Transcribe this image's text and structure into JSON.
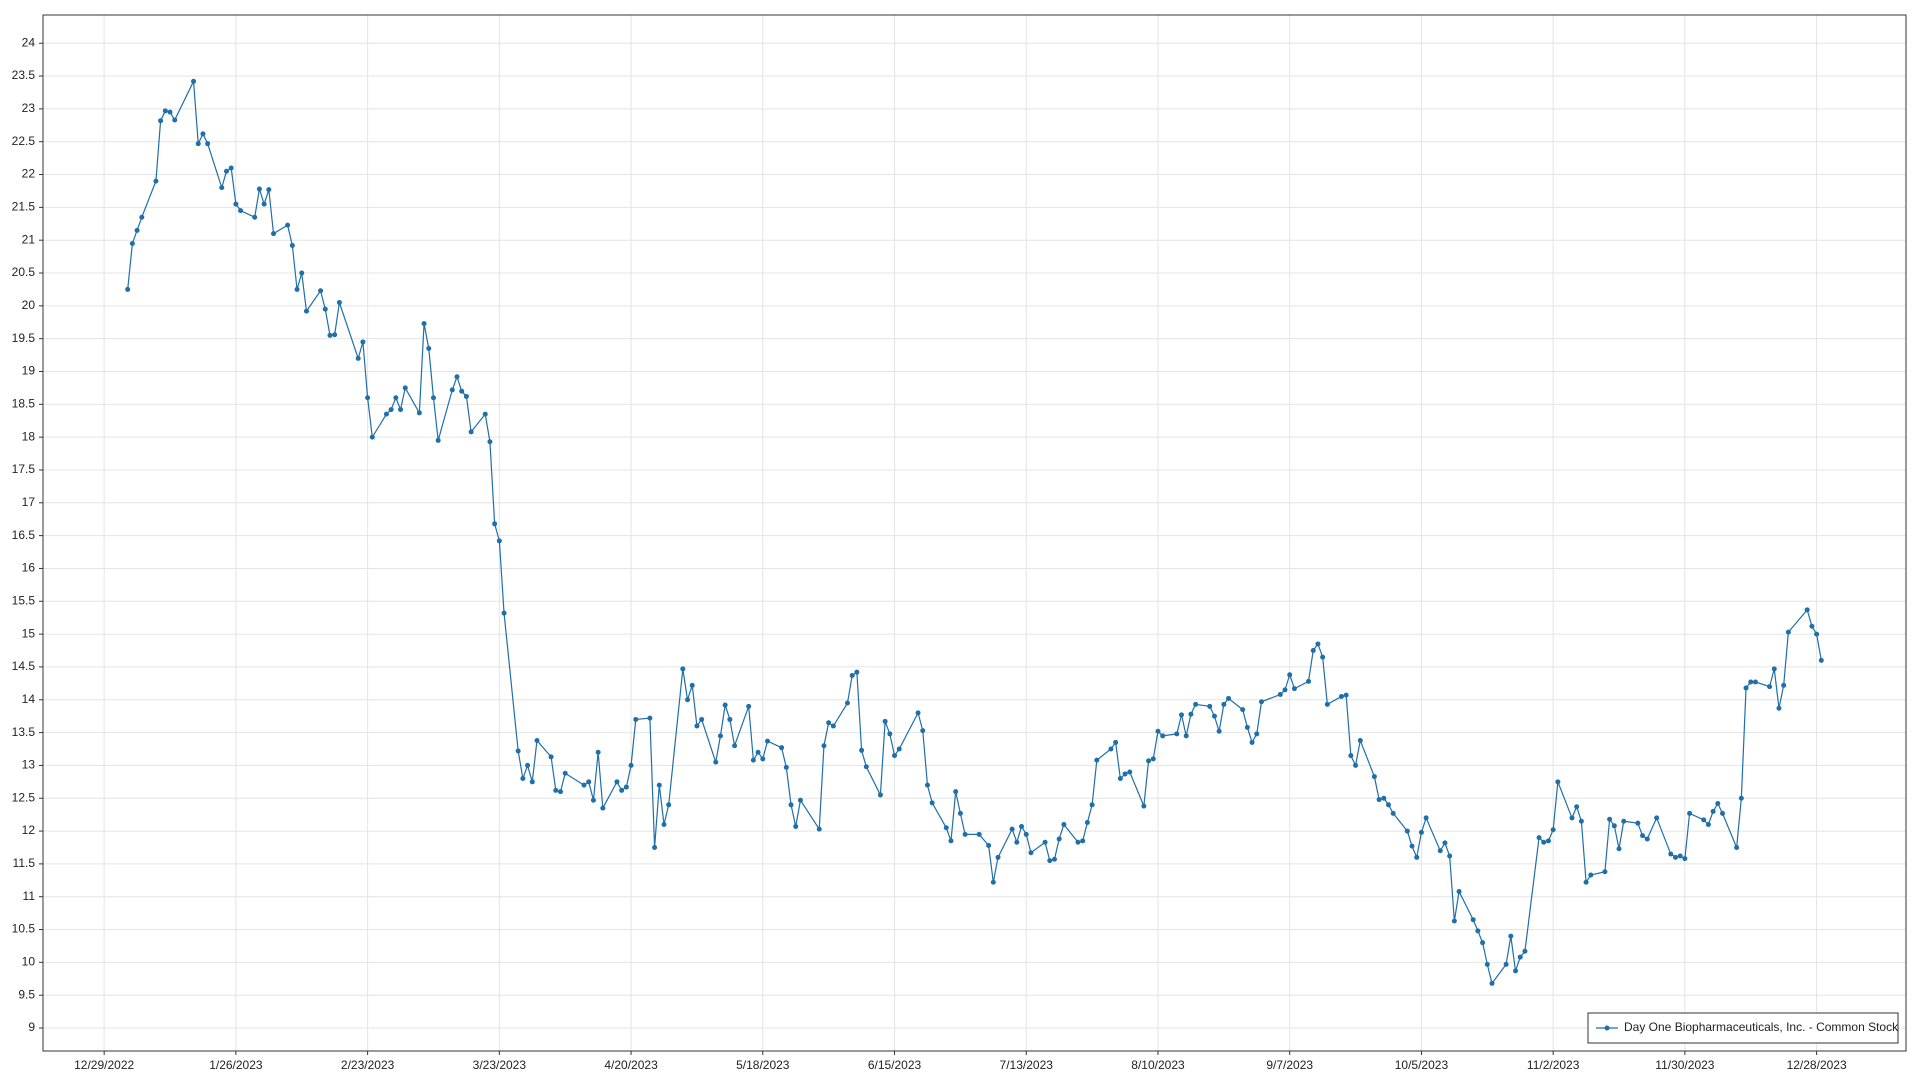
{
  "chart_data": {
    "type": "line",
    "x": [
      "1/3/2023",
      "1/4/2023",
      "1/5/2023",
      "1/6/2023",
      "1/9/2023",
      "1/10/2023",
      "1/11/2023",
      "1/12/2023",
      "1/13/2023",
      "1/17/2023",
      "1/18/2023",
      "1/19/2023",
      "1/20/2023",
      "1/23/2023",
      "1/24/2023",
      "1/25/2023",
      "1/26/2023",
      "1/27/2023",
      "1/30/2023",
      "1/31/2023",
      "2/1/2023",
      "2/2/2023",
      "2/3/2023",
      "2/6/2023",
      "2/7/2023",
      "2/8/2023",
      "2/9/2023",
      "2/10/2023",
      "2/13/2023",
      "2/14/2023",
      "2/15/2023",
      "2/16/2023",
      "2/17/2023",
      "2/21/2023",
      "2/22/2023",
      "2/23/2023",
      "2/24/2023",
      "2/27/2023",
      "2/28/2023",
      "3/1/2023",
      "3/2/2023",
      "3/3/2023",
      "3/6/2023",
      "3/7/2023",
      "3/8/2023",
      "3/9/2023",
      "3/10/2023",
      "3/13/2023",
      "3/14/2023",
      "3/15/2023",
      "3/16/2023",
      "3/17/2023",
      "3/20/2023",
      "3/21/2023",
      "3/22/2023",
      "3/23/2023",
      "3/24/2023",
      "3/27/2023",
      "3/28/2023",
      "3/29/2023",
      "3/30/2023",
      "3/31/2023",
      "4/3/2023",
      "4/4/2023",
      "4/5/2023",
      "4/6/2023",
      "4/10/2023",
      "4/11/2023",
      "4/12/2023",
      "4/13/2023",
      "4/14/2023",
      "4/17/2023",
      "4/18/2023",
      "4/19/2023",
      "4/20/2023",
      "4/21/2023",
      "4/24/2023",
      "4/25/2023",
      "4/26/2023",
      "4/27/2023",
      "4/28/2023",
      "5/1/2023",
      "5/2/2023",
      "5/3/2023",
      "5/4/2023",
      "5/5/2023",
      "5/8/2023",
      "5/9/2023",
      "5/10/2023",
      "5/11/2023",
      "5/12/2023",
      "5/15/2023",
      "5/16/2023",
      "5/17/2023",
      "5/18/2023",
      "5/19/2023",
      "5/22/2023",
      "5/23/2023",
      "5/24/2023",
      "5/25/2023",
      "5/26/2023",
      "5/30/2023",
      "5/31/2023",
      "6/1/2023",
      "6/2/2023",
      "6/5/2023",
      "6/6/2023",
      "6/7/2023",
      "6/8/2023",
      "6/9/2023",
      "6/12/2023",
      "6/13/2023",
      "6/14/2023",
      "6/15/2023",
      "6/16/2023",
      "6/20/2023",
      "6/21/2023",
      "6/22/2023",
      "6/23/2023",
      "6/26/2023",
      "6/27/2023",
      "6/28/2023",
      "6/29/2023",
      "6/30/2023",
      "7/3/2023",
      "7/5/2023",
      "7/6/2023",
      "7/7/2023",
      "7/10/2023",
      "7/11/2023",
      "7/12/2023",
      "7/13/2023",
      "7/14/2023",
      "7/17/2023",
      "7/18/2023",
      "7/19/2023",
      "7/20/2023",
      "7/21/2023",
      "7/24/2023",
      "7/25/2023",
      "7/26/2023",
      "7/27/2023",
      "7/28/2023",
      "7/31/2023",
      "8/1/2023",
      "8/2/2023",
      "8/3/2023",
      "8/4/2023",
      "8/7/2023",
      "8/8/2023",
      "8/9/2023",
      "8/10/2023",
      "8/11/2023",
      "8/14/2023",
      "8/15/2023",
      "8/16/2023",
      "8/17/2023",
      "8/18/2023",
      "8/21/2023",
      "8/22/2023",
      "8/23/2023",
      "8/24/2023",
      "8/25/2023",
      "8/28/2023",
      "8/29/2023",
      "8/30/2023",
      "8/31/2023",
      "9/1/2023",
      "9/5/2023",
      "9/6/2023",
      "9/7/2023",
      "9/8/2023",
      "9/11/2023",
      "9/12/2023",
      "9/13/2023",
      "9/14/2023",
      "9/15/2023",
      "9/18/2023",
      "9/19/2023",
      "9/20/2023",
      "9/21/2023",
      "9/22/2023",
      "9/25/2023",
      "9/26/2023",
      "9/27/2023",
      "9/28/2023",
      "9/29/2023",
      "10/2/2023",
      "10/3/2023",
      "10/4/2023",
      "10/5/2023",
      "10/6/2023",
      "10/9/2023",
      "10/10/2023",
      "10/11/2023",
      "10/12/2023",
      "10/13/2023",
      "10/16/2023",
      "10/17/2023",
      "10/18/2023",
      "10/19/2023",
      "10/20/2023",
      "10/23/2023",
      "10/24/2023",
      "10/25/2023",
      "10/26/2023",
      "10/27/2023",
      "10/30/2023",
      "10/31/2023",
      "11/1/2023",
      "11/2/2023",
      "11/3/2023",
      "11/6/2023",
      "11/7/2023",
      "11/8/2023",
      "11/9/2023",
      "11/10/2023",
      "11/13/2023",
      "11/14/2023",
      "11/15/2023",
      "11/16/2023",
      "11/17/2023",
      "11/20/2023",
      "11/21/2023",
      "11/22/2023",
      "11/24/2023",
      "11/27/2023",
      "11/28/2023",
      "11/29/2023",
      "11/30/2023",
      "12/1/2023",
      "12/4/2023",
      "12/5/2023",
      "12/6/2023",
      "12/7/2023",
      "12/8/2023",
      "12/11/2023",
      "12/12/2023",
      "12/13/2023",
      "12/14/2023",
      "12/15/2023",
      "12/18/2023",
      "12/19/2023",
      "12/20/2023",
      "12/21/2023",
      "12/22/2023",
      "12/26/2023",
      "12/27/2023",
      "12/28/2023",
      "12/29/2023"
    ],
    "series": [
      {
        "name": "Day One Biopharmaceuticals, Inc. - Common Stock",
        "color": "#1f6fa8",
        "values": [
          20.25,
          20.95,
          21.15,
          21.35,
          21.9,
          22.82,
          22.97,
          22.95,
          22.83,
          23.42,
          22.47,
          22.62,
          22.47,
          21.8,
          22.05,
          22.1,
          21.55,
          21.45,
          21.35,
          21.78,
          21.55,
          21.77,
          21.1,
          21.23,
          20.92,
          20.25,
          20.5,
          19.92,
          20.23,
          19.95,
          19.55,
          19.56,
          20.05,
          19.2,
          19.45,
          18.6,
          18.0,
          18.35,
          18.42,
          18.6,
          18.42,
          18.75,
          18.37,
          19.73,
          19.35,
          18.6,
          17.95,
          18.72,
          18.92,
          18.7,
          18.62,
          18.08,
          18.35,
          17.93,
          16.68,
          16.42,
          15.32,
          13.22,
          12.8,
          13.0,
          12.75,
          13.38,
          13.13,
          12.62,
          12.6,
          12.88,
          12.7,
          12.75,
          12.47,
          13.2,
          12.35,
          12.75,
          12.62,
          12.67,
          13.0,
          13.7,
          13.72,
          11.75,
          12.7,
          12.1,
          12.4,
          14.47,
          14.0,
          14.22,
          13.6,
          13.7,
          13.05,
          13.45,
          13.92,
          13.7,
          13.3,
          13.9,
          13.08,
          13.2,
          13.1,
          13.37,
          13.27,
          12.97,
          12.4,
          12.07,
          12.47,
          12.03,
          13.3,
          13.65,
          13.6,
          13.95,
          14.37,
          14.42,
          13.23,
          12.98,
          12.55,
          13.67,
          13.48,
          13.15,
          13.25,
          13.8,
          13.53,
          12.7,
          12.43,
          12.05,
          11.85,
          12.6,
          12.27,
          11.95,
          11.95,
          11.78,
          11.22,
          11.6,
          12.03,
          11.83,
          12.07,
          11.95,
          11.67,
          11.83,
          11.55,
          11.57,
          11.88,
          12.1,
          11.83,
          11.85,
          12.13,
          12.4,
          13.08,
          13.25,
          13.35,
          12.8,
          12.87,
          12.9,
          12.38,
          13.07,
          13.1,
          13.52,
          13.45,
          13.48,
          13.77,
          13.45,
          13.78,
          13.93,
          13.9,
          13.75,
          13.52,
          13.93,
          14.02,
          13.85,
          13.58,
          13.35,
          13.48,
          13.97,
          14.08,
          14.15,
          14.38,
          14.17,
          14.28,
          14.75,
          14.85,
          14.65,
          13.93,
          14.05,
          14.07,
          13.15,
          13.0,
          13.38,
          12.83,
          12.48,
          12.5,
          12.4,
          12.27,
          12.0,
          11.77,
          11.6,
          11.98,
          12.2,
          11.7,
          11.82,
          11.62,
          10.63,
          11.08,
          10.65,
          10.48,
          10.3,
          9.97,
          9.68,
          9.97,
          10.4,
          9.87,
          10.08,
          10.17,
          11.9,
          11.83,
          11.85,
          12.02,
          12.75,
          12.2,
          12.37,
          12.15,
          11.22,
          11.33,
          11.38,
          12.18,
          12.08,
          11.73,
          12.15,
          12.12,
          11.93,
          11.88,
          12.2,
          11.65,
          11.6,
          11.62,
          11.58,
          12.27,
          12.17,
          12.1,
          12.3,
          12.42,
          12.27,
          11.75,
          12.5,
          14.18,
          14.27,
          14.27,
          14.2,
          14.47,
          13.87,
          14.22,
          15.03,
          15.37,
          15.12,
          15.0,
          14.6
        ]
      }
    ],
    "xlim": [
      "12/16/2022",
      "1/16/2024"
    ],
    "xticks": [
      "12/29/2022",
      "1/26/2023",
      "2/23/2023",
      "3/23/2023",
      "4/20/2023",
      "5/18/2023",
      "6/15/2023",
      "7/13/2023",
      "8/10/2023",
      "9/7/2023",
      "10/5/2023",
      "11/2/2023",
      "11/30/2023",
      "12/28/2023"
    ],
    "ylim": [
      8.65,
      24.43
    ],
    "yticks": [
      9,
      9.5,
      10,
      10.5,
      11,
      11.5,
      12,
      12.5,
      13,
      13.5,
      14,
      14.5,
      15,
      15.5,
      16,
      16.5,
      17,
      17.5,
      18,
      18.5,
      19,
      19.5,
      20,
      20.5,
      21,
      21.5,
      22,
      22.5,
      23,
      23.5,
      24
    ],
    "grid": true,
    "legend": "lower right"
  }
}
